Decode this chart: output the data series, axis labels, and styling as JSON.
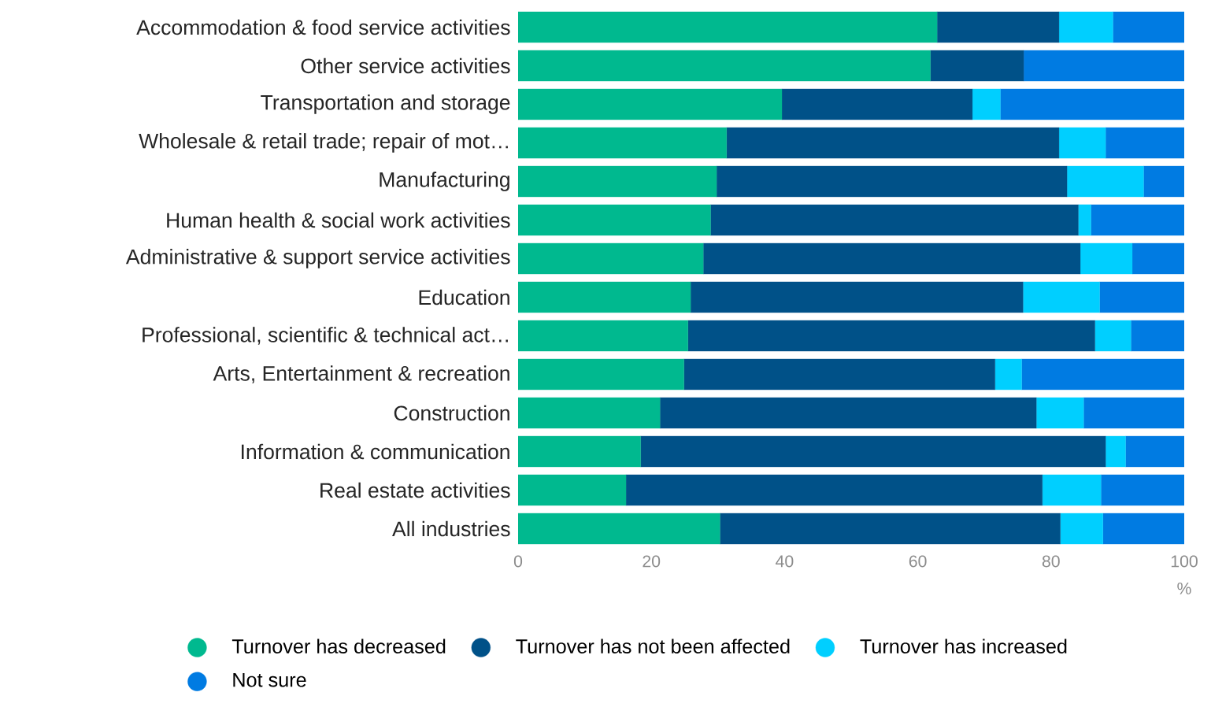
{
  "chart_data": {
    "type": "bar",
    "orientation": "horizontal",
    "stacked": true,
    "categories": [
      "Accommodation & food service activities",
      "Other service activities",
      "Transportation and storage",
      "Wholesale & retail trade; repair of mot…",
      "Manufacturing",
      "Human health & social work activities",
      "Administrative & support service activities",
      "Education",
      "Professional, scientific & technical act…",
      "Arts, Entertainment & recreation",
      "Construction",
      "Information & communication",
      "Real estate activities",
      "All industries"
    ],
    "series": [
      {
        "name": "Turnover has decreased",
        "color": "#00b98f",
        "values": [
          62.9,
          61.9,
          39.6,
          31.3,
          29.8,
          28.9,
          27.8,
          25.9,
          25.5,
          24.9,
          21.3,
          18.4,
          16.2,
          30.3
        ]
      },
      {
        "name": "Turnover has not been affected",
        "color": "#005188",
        "values": [
          18.3,
          14.0,
          28.6,
          49.9,
          52.6,
          55.2,
          56.6,
          49.9,
          61.1,
          46.7,
          56.5,
          69.8,
          62.5,
          51.1
        ]
      },
      {
        "name": "Turnover has increased",
        "color": "#00cfff",
        "values": [
          8.1,
          0.0,
          4.2,
          7.0,
          11.5,
          1.9,
          7.8,
          11.5,
          5.4,
          4.0,
          7.1,
          3.0,
          8.8,
          6.4
        ]
      },
      {
        "name": "Not sure",
        "color": "#007be2",
        "values": [
          10.7,
          24.1,
          27.6,
          11.8,
          6.1,
          14.0,
          7.8,
          12.7,
          8.0,
          24.4,
          15.1,
          8.8,
          12.5,
          12.2
        ]
      }
    ],
    "xlim": [
      0,
      100
    ],
    "xticks": [
      0,
      20,
      40,
      60,
      80,
      100
    ],
    "xlabel": "%",
    "legend": "bottom",
    "grid": false
  }
}
